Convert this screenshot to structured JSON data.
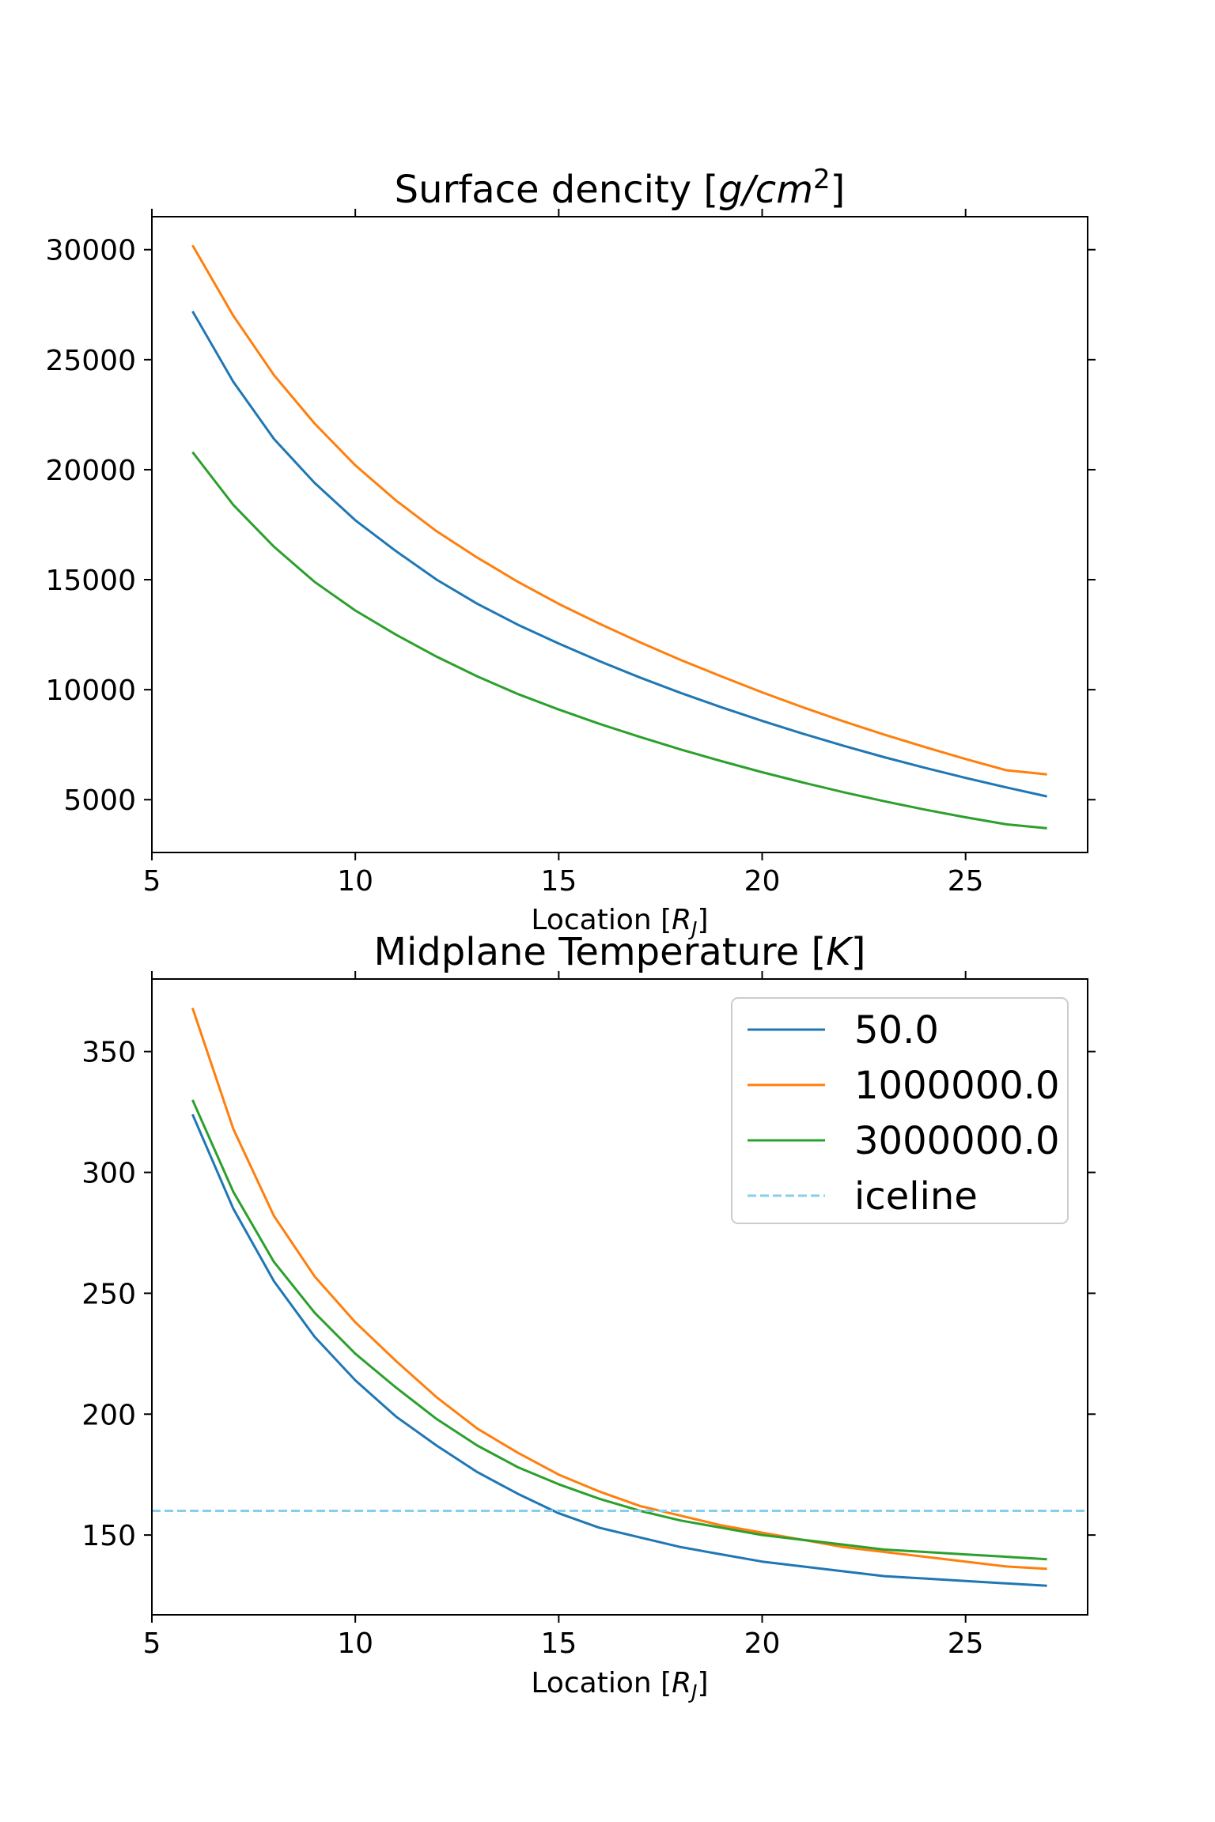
{
  "chart_data": [
    {
      "type": "line",
      "title": "Surface dencity [g/cm²]",
      "title_parts": {
        "plain": "Surface dencity [",
        "italic": "g/cm",
        "sup": "2",
        "close": "]"
      },
      "xlabel": "Location [R_J]",
      "xlabel_parts": {
        "plain": "Location [",
        "italic": "R",
        "sub": "J",
        "close": "]"
      },
      "ylabel": "",
      "xlim": [
        5,
        28
      ],
      "ylim": [
        2600,
        31500
      ],
      "xticks": [
        5,
        10,
        15,
        20,
        25
      ],
      "yticks": [
        5000,
        10000,
        15000,
        20000,
        25000,
        30000
      ],
      "grid": false,
      "series": [
        {
          "name": "50.0",
          "color": "#1f77b4",
          "dash": "solid",
          "x": [
            6,
            7,
            8,
            9,
            10,
            11,
            12,
            13,
            14,
            15,
            16,
            17,
            18,
            19,
            20,
            21,
            22,
            23,
            24,
            25,
            26,
            27
          ],
          "y": [
            27200,
            24000,
            21400,
            19400,
            17700,
            16300,
            15000,
            13900,
            12950,
            12100,
            11300,
            10550,
            9850,
            9200,
            8580,
            8000,
            7450,
            6930,
            6450,
            5990,
            5560,
            5150
          ]
        },
        {
          "name": "1000000.0",
          "color": "#ff7f0e",
          "dash": "solid",
          "x": [
            6,
            7,
            8,
            9,
            10,
            11,
            12,
            13,
            14,
            15,
            16,
            17,
            18,
            19,
            20,
            21,
            22,
            23,
            24,
            25,
            26,
            27
          ],
          "y": [
            30200,
            27000,
            24300,
            22100,
            20200,
            18600,
            17200,
            16000,
            14900,
            13900,
            13000,
            12150,
            11350,
            10600,
            9880,
            9200,
            8560,
            7960,
            7390,
            6850,
            6340,
            6150
          ]
        },
        {
          "name": "3000000.0",
          "color": "#2ca02c",
          "dash": "solid",
          "x": [
            6,
            7,
            8,
            9,
            10,
            11,
            12,
            13,
            14,
            15,
            16,
            17,
            18,
            19,
            20,
            21,
            22,
            23,
            24,
            25,
            26,
            27
          ],
          "y": [
            20800,
            18400,
            16500,
            14900,
            13600,
            12500,
            11500,
            10600,
            9800,
            9100,
            8450,
            7850,
            7280,
            6750,
            6250,
            5780,
            5340,
            4930,
            4550,
            4200,
            3880,
            3700
          ]
        }
      ]
    },
    {
      "type": "line",
      "title": "Midplane Temperature [K]",
      "title_parts": {
        "plain": "Midplane Temperature [",
        "italic": "K",
        "close": "]"
      },
      "xlabel": "Location [R_J]",
      "xlabel_parts": {
        "plain": "Location [",
        "italic": "R",
        "sub": "J",
        "close": "]"
      },
      "ylabel": "",
      "xlim": [
        5,
        28
      ],
      "ylim": [
        117,
        380
      ],
      "xticks": [
        5,
        10,
        15,
        20,
        25
      ],
      "yticks": [
        150,
        200,
        250,
        300,
        350
      ],
      "grid": false,
      "legend_position": "top-right",
      "series": [
        {
          "name": "50.0",
          "color": "#1f77b4",
          "dash": "solid",
          "x": [
            6,
            7,
            8,
            9,
            10,
            11,
            12,
            13,
            14,
            15,
            16,
            17,
            18,
            19,
            20,
            21,
            22,
            23,
            24,
            25,
            26,
            27
          ],
          "y": [
            324,
            285,
            255,
            232,
            214,
            199,
            187,
            176,
            167,
            159,
            153,
            149,
            145,
            142,
            139,
            137,
            135,
            133,
            132,
            131,
            130,
            129
          ]
        },
        {
          "name": "1000000.0",
          "color": "#ff7f0e",
          "dash": "solid",
          "x": [
            6,
            7,
            8,
            9,
            10,
            11,
            12,
            13,
            14,
            15,
            16,
            17,
            18,
            19,
            20,
            21,
            22,
            23,
            24,
            25,
            26,
            27
          ],
          "y": [
            368,
            318,
            282,
            257,
            238,
            222,
            207,
            194,
            184,
            175,
            168,
            162,
            158,
            154,
            151,
            148,
            145,
            143,
            141,
            139,
            137,
            136
          ]
        },
        {
          "name": "3000000.0",
          "color": "#2ca02c",
          "dash": "solid",
          "x": [
            6,
            7,
            8,
            9,
            10,
            11,
            12,
            13,
            14,
            15,
            16,
            17,
            18,
            19,
            20,
            21,
            22,
            23,
            24,
            25,
            26,
            27
          ],
          "y": [
            330,
            292,
            263,
            242,
            225,
            211,
            198,
            187,
            178,
            171,
            165,
            160,
            156,
            153,
            150,
            148,
            146,
            144,
            143,
            142,
            141,
            140
          ]
        },
        {
          "name": "iceline",
          "color": "#87ceeb",
          "dash": "dashed",
          "x": [
            5,
            28
          ],
          "y": [
            160,
            160
          ]
        }
      ]
    }
  ]
}
